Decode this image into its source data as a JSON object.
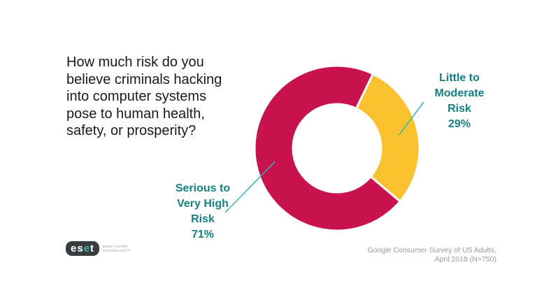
{
  "question": {
    "lines": [
      "How much risk do you",
      "believe criminals hacking",
      "into computer systems",
      "pose to human health,",
      "safety, or prosperity?"
    ]
  },
  "chart_data": {
    "type": "pie",
    "donut": true,
    "slices": [
      {
        "label_lines": [
          "Little to",
          "Moderate",
          "Risk"
        ],
        "value": 29,
        "value_label": "29%",
        "color": "#f9c12e"
      },
      {
        "label_lines": [
          "Serious to",
          "Very High",
          "Risk"
        ],
        "value": 71,
        "value_label": "71%",
        "color": "#c8134f"
      }
    ],
    "label_color": "#157f82",
    "leader_line_color": "#2fb7b4"
  },
  "source": {
    "line1": "Google Consumer  Survey of US Adults,",
    "line2": "April 2018 (N=750)"
  },
  "logo": {
    "brand_prefix": "es",
    "brand_accent": "e",
    "brand_suffix": "t",
    "tagline_line1": "ENJOY SAFER",
    "tagline_line2": "TECHNOLOGY™"
  }
}
